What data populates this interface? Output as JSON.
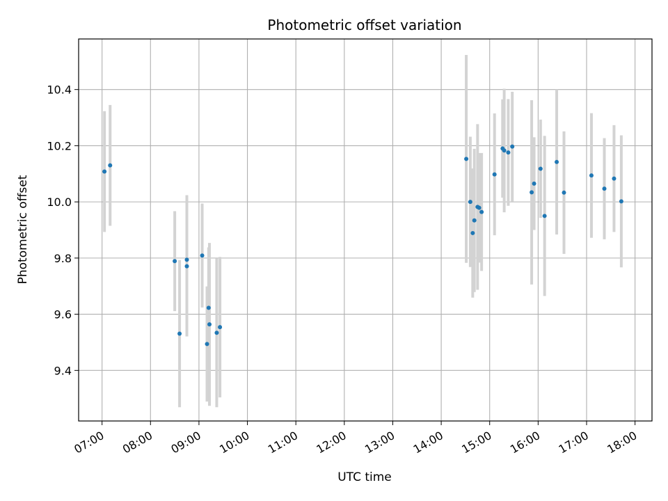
{
  "chart_data": {
    "type": "scatter",
    "title": "Photometric offset variation",
    "xlabel": "UTC time",
    "ylabel": "Photometric offset",
    "grid": true,
    "colors": {
      "point": "#1f77b4",
      "errorbar": "#d3d3d3",
      "grid": "#b0b0b0"
    },
    "x_ticks": [
      "07:00",
      "08:00",
      "09:00",
      "10:00",
      "11:00",
      "12:00",
      "13:00",
      "14:00",
      "15:00",
      "16:00",
      "17:00",
      "18:00"
    ],
    "y_ticks": [
      "9.4",
      "9.6",
      "9.8",
      "10.0",
      "10.2",
      "10.4"
    ],
    "xlim": [
      "06:31",
      "18:21"
    ],
    "ylim": [
      9.22,
      10.58
    ],
    "points": [
      {
        "x": "07:03",
        "y": 10.108,
        "err": 0.215
      },
      {
        "x": "07:10",
        "y": 10.13,
        "err": 0.215
      },
      {
        "x": "08:30",
        "y": 9.789,
        "err": 0.178
      },
      {
        "x": "08:36",
        "y": 9.531,
        "err": 0.262
      },
      {
        "x": "08:45",
        "y": 9.794,
        "err": 0.23
      },
      {
        "x": "08:45",
        "y": 9.771,
        "err": 0.25
      },
      {
        "x": "09:04",
        "y": 9.809,
        "err": 0.185
      },
      {
        "x": "09:10",
        "y": 9.494,
        "err": 0.205
      },
      {
        "x": "09:12",
        "y": 9.623,
        "err": 0.215
      },
      {
        "x": "09:13",
        "y": 9.564,
        "err": 0.29
      },
      {
        "x": "09:22",
        "y": 9.534,
        "err": 0.265
      },
      {
        "x": "09:26",
        "y": 9.554,
        "err": 0.25
      },
      {
        "x": "14:31",
        "y": 10.153,
        "err": 0.37
      },
      {
        "x": "14:36",
        "y": 10.0,
        "err": 0.232
      },
      {
        "x": "14:39",
        "y": 9.889,
        "err": 0.23
      },
      {
        "x": "14:41",
        "y": 9.934,
        "err": 0.255
      },
      {
        "x": "14:45",
        "y": 9.982,
        "err": 0.295
      },
      {
        "x": "14:47",
        "y": 9.979,
        "err": 0.195
      },
      {
        "x": "14:50",
        "y": 9.964,
        "err": 0.21
      },
      {
        "x": "15:06",
        "y": 10.098,
        "err": 0.217
      },
      {
        "x": "15:16",
        "y": 10.19,
        "err": 0.175
      },
      {
        "x": "15:18",
        "y": 10.183,
        "err": 0.22
      },
      {
        "x": "15:23",
        "y": 10.176,
        "err": 0.19
      },
      {
        "x": "15:28",
        "y": 10.197,
        "err": 0.195
      },
      {
        "x": "15:52",
        "y": 10.034,
        "err": 0.328
      },
      {
        "x": "15:55",
        "y": 10.065,
        "err": 0.165
      },
      {
        "x": "16:03",
        "y": 10.118,
        "err": 0.175
      },
      {
        "x": "16:08",
        "y": 9.95,
        "err": 0.285
      },
      {
        "x": "16:23",
        "y": 10.142,
        "err": 0.258
      },
      {
        "x": "16:32",
        "y": 10.033,
        "err": 0.218
      },
      {
        "x": "17:06",
        "y": 10.094,
        "err": 0.222
      },
      {
        "x": "17:22",
        "y": 10.047,
        "err": 0.18
      },
      {
        "x": "17:34",
        "y": 10.083,
        "err": 0.19
      },
      {
        "x": "17:43",
        "y": 10.002,
        "err": 0.235
      }
    ]
  }
}
